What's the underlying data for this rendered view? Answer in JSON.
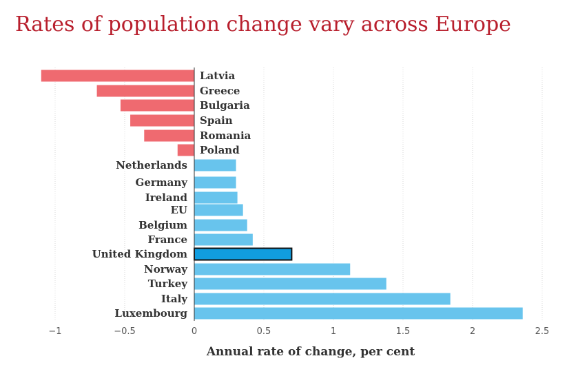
{
  "title": "Rates of population change vary across Europe",
  "colors": {
    "title": "#b81f2d",
    "negative": "#ef6a70",
    "positive": "#68c4ed",
    "highlight": "#119ddf",
    "highlight_outline": "#111111",
    "grid": "#d9d9d9",
    "label": "#333333"
  },
  "chart_data": {
    "type": "bar",
    "orientation": "horizontal",
    "xlabel": "Annual rate of change, per cent",
    "ylabel": "",
    "xlim": [
      -1.1,
      2.5
    ],
    "xticks": [
      -1,
      -0.5,
      0,
      0.5,
      1,
      1.5,
      2,
      2.5
    ],
    "xtick_labels": [
      "−1",
      "−0.5",
      "0",
      "0.5",
      "1",
      "1.5",
      "2",
      "2.5"
    ],
    "grid": true,
    "highlight": "United Kingdom",
    "categories": [
      "Latvia",
      "Greece",
      "Bulgaria",
      "Spain",
      "Romania",
      "Poland",
      "Netherlands",
      "Germany",
      "Ireland",
      "EU",
      "Belgium",
      "France",
      "United Kingdom",
      "Norway",
      "Turkey",
      "Italy",
      "Luxembourg"
    ],
    "values": [
      -1.1,
      -0.7,
      -0.53,
      -0.46,
      -0.36,
      -0.12,
      0.3,
      0.3,
      0.31,
      0.35,
      0.38,
      0.42,
      0.7,
      1.12,
      1.38,
      1.84,
      2.36
    ]
  }
}
